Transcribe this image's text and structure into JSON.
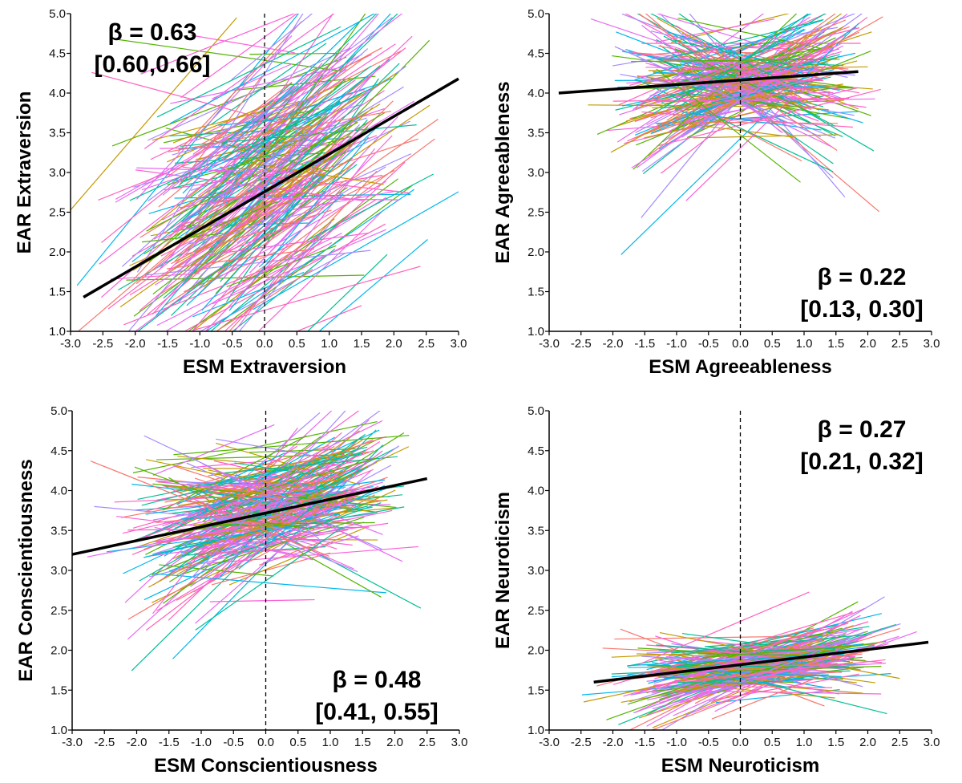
{
  "chart_data": [
    {
      "type": "line",
      "title": "",
      "xlabel": "ESM Extraversion",
      "ylabel": "EAR Extraversion",
      "xlim": [
        -3.0,
        3.0
      ],
      "ylim": [
        1.0,
        5.0
      ],
      "xticks": [
        "-3.0",
        "-2.5",
        "-2.0",
        "-1.5",
        "-1.0",
        "-0.5",
        "0.0",
        "0.5",
        "1.0",
        "1.5",
        "2.0",
        "2.5",
        "3.0"
      ],
      "yticks": [
        "1.0",
        "1.5",
        "2.0",
        "2.5",
        "3.0",
        "3.5",
        "4.0",
        "4.5",
        "5.0"
      ],
      "fixed_line": {
        "x": [
          -2.8,
          3.0
        ],
        "y": [
          1.43,
          4.18
        ]
      },
      "individual_lines": {
        "count": 260,
        "x_center": 0.0,
        "x_spread": 1.0,
        "y_center": 2.85,
        "y_spread": 0.75,
        "slope_mean": 0.55,
        "slope_sd": 0.3
      },
      "annotation": [
        "β = 0.63",
        "[0.60,0.66]"
      ],
      "annotation_pos": "top-left"
    },
    {
      "type": "line",
      "title": "",
      "xlabel": "ESM Agreeableness",
      "ylabel": "EAR Agreeableness",
      "xlim": [
        -3.0,
        3.0
      ],
      "ylim": [
        1.0,
        5.0
      ],
      "xticks": [
        "-3.0",
        "-2.5",
        "-2.0",
        "-1.5",
        "-1.0",
        "-0.5",
        "0.0",
        "0.5",
        "1.0",
        "1.5",
        "2.0",
        "2.5",
        "3.0"
      ],
      "yticks": [
        "1.0",
        "1.5",
        "2.0",
        "2.5",
        "3.0",
        "3.5",
        "4.0",
        "4.5",
        "5.0"
      ],
      "fixed_line": {
        "x": [
          -2.85,
          1.85
        ],
        "y": [
          4.0,
          4.27
        ]
      },
      "individual_lines": {
        "count": 220,
        "x_center": 0.0,
        "x_spread": 0.6,
        "y_center": 4.15,
        "y_spread": 0.25,
        "slope_mean": 0.05,
        "slope_sd": 0.35
      },
      "annotation": [
        "β = 0.22",
        "[0.13, 0.30]"
      ],
      "annotation_pos": "bottom-right"
    },
    {
      "type": "line",
      "title": "",
      "xlabel": "ESM Conscientiousness",
      "ylabel": "EAR Conscientiousness",
      "xlim": [
        -3.0,
        3.0
      ],
      "ylim": [
        1.0,
        5.0
      ],
      "xticks": [
        "-3.0",
        "-2.5",
        "-2.0",
        "-1.5",
        "-1.0",
        "-0.5",
        "0.0",
        "0.5",
        "1.0",
        "1.5",
        "2.0",
        "2.5",
        "3.0"
      ],
      "yticks": [
        "1.0",
        "1.5",
        "2.0",
        "2.5",
        "3.0",
        "3.5",
        "4.0",
        "4.5",
        "5.0"
      ],
      "fixed_line": {
        "x": [
          -3.0,
          2.5
        ],
        "y": [
          3.2,
          4.15
        ]
      },
      "individual_lines": {
        "count": 240,
        "x_center": 0.0,
        "x_spread": 0.7,
        "y_center": 3.75,
        "y_spread": 0.35,
        "slope_mean": 0.2,
        "slope_sd": 0.25
      },
      "annotation": [
        "β = 0.48",
        "[0.41, 0.55]"
      ],
      "annotation_pos": "bottom-right"
    },
    {
      "type": "line",
      "title": "",
      "xlabel": "ESM Neuroticism",
      "ylabel": "EAR Neuroticism",
      "xlim": [
        -3.0,
        3.0
      ],
      "ylim": [
        1.0,
        5.0
      ],
      "xticks": [
        "-3.0",
        "-2.5",
        "-2.0",
        "-1.5",
        "-1.0",
        "-0.5",
        "0.0",
        "0.5",
        "1.0",
        "1.5",
        "2.0",
        "2.5",
        "3.0"
      ],
      "yticks": [
        "1.0",
        "1.5",
        "2.0",
        "2.5",
        "3.0",
        "3.5",
        "4.0",
        "4.5",
        "5.0"
      ],
      "fixed_line": {
        "x": [
          -2.3,
          2.95
        ],
        "y": [
          1.6,
          2.1
        ]
      },
      "individual_lines": {
        "count": 220,
        "x_center": 0.2,
        "x_spread": 0.7,
        "y_center": 1.8,
        "y_spread": 0.15,
        "slope_mean": 0.1,
        "slope_sd": 0.15
      },
      "annotation": [
        "β = 0.27",
        "[0.21, 0.32]"
      ],
      "annotation_pos": "top-right"
    }
  ],
  "palette": [
    "#F8766D",
    "#C49A00",
    "#53B400",
    "#00C094",
    "#00B6EB",
    "#A58AFF",
    "#FB61D7",
    "#E76BF3",
    "#FF62BC"
  ]
}
